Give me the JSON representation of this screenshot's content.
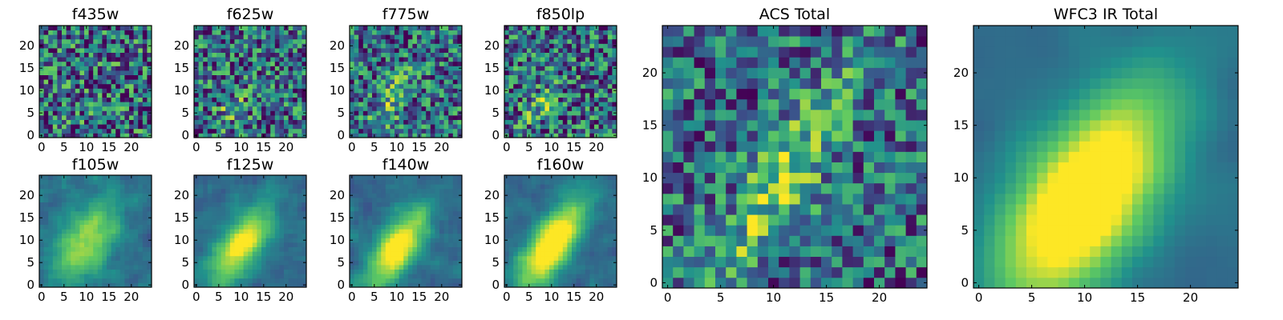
{
  "figure": {
    "colormap": [
      "#440154",
      "#3b528b",
      "#21918c",
      "#5ec962",
      "#fde725"
    ],
    "frame_color": "#000000",
    "background": "#ffffff"
  },
  "chart_data": [
    {
      "id": "f435w",
      "type": "heatmap",
      "title": "f435w",
      "grid_size": 25,
      "xticks": [
        0,
        5,
        10,
        15,
        20
      ],
      "yticks": [
        0,
        5,
        10,
        15,
        20
      ],
      "xlim": [
        -0.5,
        24.5
      ],
      "ylim": [
        -0.5,
        24.5
      ],
      "values": [],
      "description": "noisy field, no clear structure"
    },
    {
      "id": "f625w",
      "type": "heatmap",
      "title": "f625w",
      "grid_size": 25,
      "xticks": [
        0,
        5,
        10,
        15,
        20
      ],
      "yticks": [
        0,
        5,
        10,
        15,
        20
      ],
      "xlim": [
        -0.5,
        24.5
      ],
      "ylim": [
        -0.5,
        24.5
      ],
      "values": [],
      "description": "noisy field, faint source near center-left"
    },
    {
      "id": "f775w",
      "type": "heatmap",
      "title": "f775w",
      "grid_size": 25,
      "xticks": [
        0,
        5,
        10,
        15,
        20
      ],
      "yticks": [
        0,
        5,
        10,
        15,
        20
      ],
      "xlim": [
        -0.5,
        24.5
      ],
      "ylim": [
        -0.5,
        24.5
      ],
      "values": [],
      "description": "noisy field, faint diagonal source"
    },
    {
      "id": "f850lp",
      "type": "heatmap",
      "title": "f850lp",
      "grid_size": 25,
      "xticks": [
        0,
        5,
        10,
        15,
        20
      ],
      "yticks": [
        0,
        5,
        10,
        15,
        20
      ],
      "xlim": [
        -0.5,
        24.5
      ],
      "ylim": [
        -0.5,
        24.5
      ],
      "values": [],
      "description": "noisy field, faint source"
    },
    {
      "id": "f105w",
      "type": "heatmap",
      "title": "f105w",
      "grid_size": 25,
      "xticks": [
        0,
        5,
        10,
        15,
        20
      ],
      "yticks": [
        0,
        5,
        10,
        15,
        20
      ],
      "xlim": [
        -0.5,
        24.5
      ],
      "ylim": [
        -0.5,
        24.5
      ],
      "values": [],
      "description": "diffuse elongated source"
    },
    {
      "id": "f125w",
      "type": "heatmap",
      "title": "f125w",
      "grid_size": 25,
      "xticks": [
        0,
        5,
        10,
        15,
        20
      ],
      "yticks": [
        0,
        5,
        10,
        15,
        20
      ],
      "xlim": [
        -0.5,
        24.5
      ],
      "ylim": [
        -0.5,
        24.5
      ],
      "values": [],
      "description": "diagonal elongated source"
    },
    {
      "id": "f140w",
      "type": "heatmap",
      "title": "f140w",
      "grid_size": 25,
      "xticks": [
        0,
        5,
        10,
        15,
        20
      ],
      "yticks": [
        0,
        5,
        10,
        15,
        20
      ],
      "xlim": [
        -0.5,
        24.5
      ],
      "ylim": [
        -0.5,
        24.5
      ],
      "values": [],
      "description": "diagonal elongated source"
    },
    {
      "id": "f160w",
      "type": "heatmap",
      "title": "f160w",
      "grid_size": 25,
      "xticks": [
        0,
        5,
        10,
        15,
        20
      ],
      "yticks": [
        0,
        5,
        10,
        15,
        20
      ],
      "xlim": [
        -0.5,
        24.5
      ],
      "ylim": [
        -0.5,
        24.5
      ],
      "values": [],
      "description": "strong diagonal elongated source"
    },
    {
      "id": "acs-total",
      "type": "heatmap",
      "title": "ACS Total",
      "grid_size": 25,
      "xticks": [
        0,
        5,
        10,
        15,
        20
      ],
      "yticks": [
        0,
        5,
        10,
        15,
        20
      ],
      "xlim": [
        -0.5,
        24.5
      ],
      "ylim": [
        -0.5,
        24.5
      ],
      "values": [],
      "description": "noisy stack with diagonal bright ridge from (7,4) to (15,17)"
    },
    {
      "id": "wfc3-ir-total",
      "type": "heatmap",
      "title": "WFC3 IR Total",
      "grid_size": 25,
      "xticks": [
        0,
        5,
        10,
        15,
        20
      ],
      "yticks": [
        0,
        5,
        10,
        15,
        20
      ],
      "xlim": [
        -0.5,
        24.5
      ],
      "ylim": [
        -0.5,
        24.5
      ],
      "values": [],
      "description": "smooth diagonal elongated galaxy from (5,2) to (14,16)"
    }
  ]
}
